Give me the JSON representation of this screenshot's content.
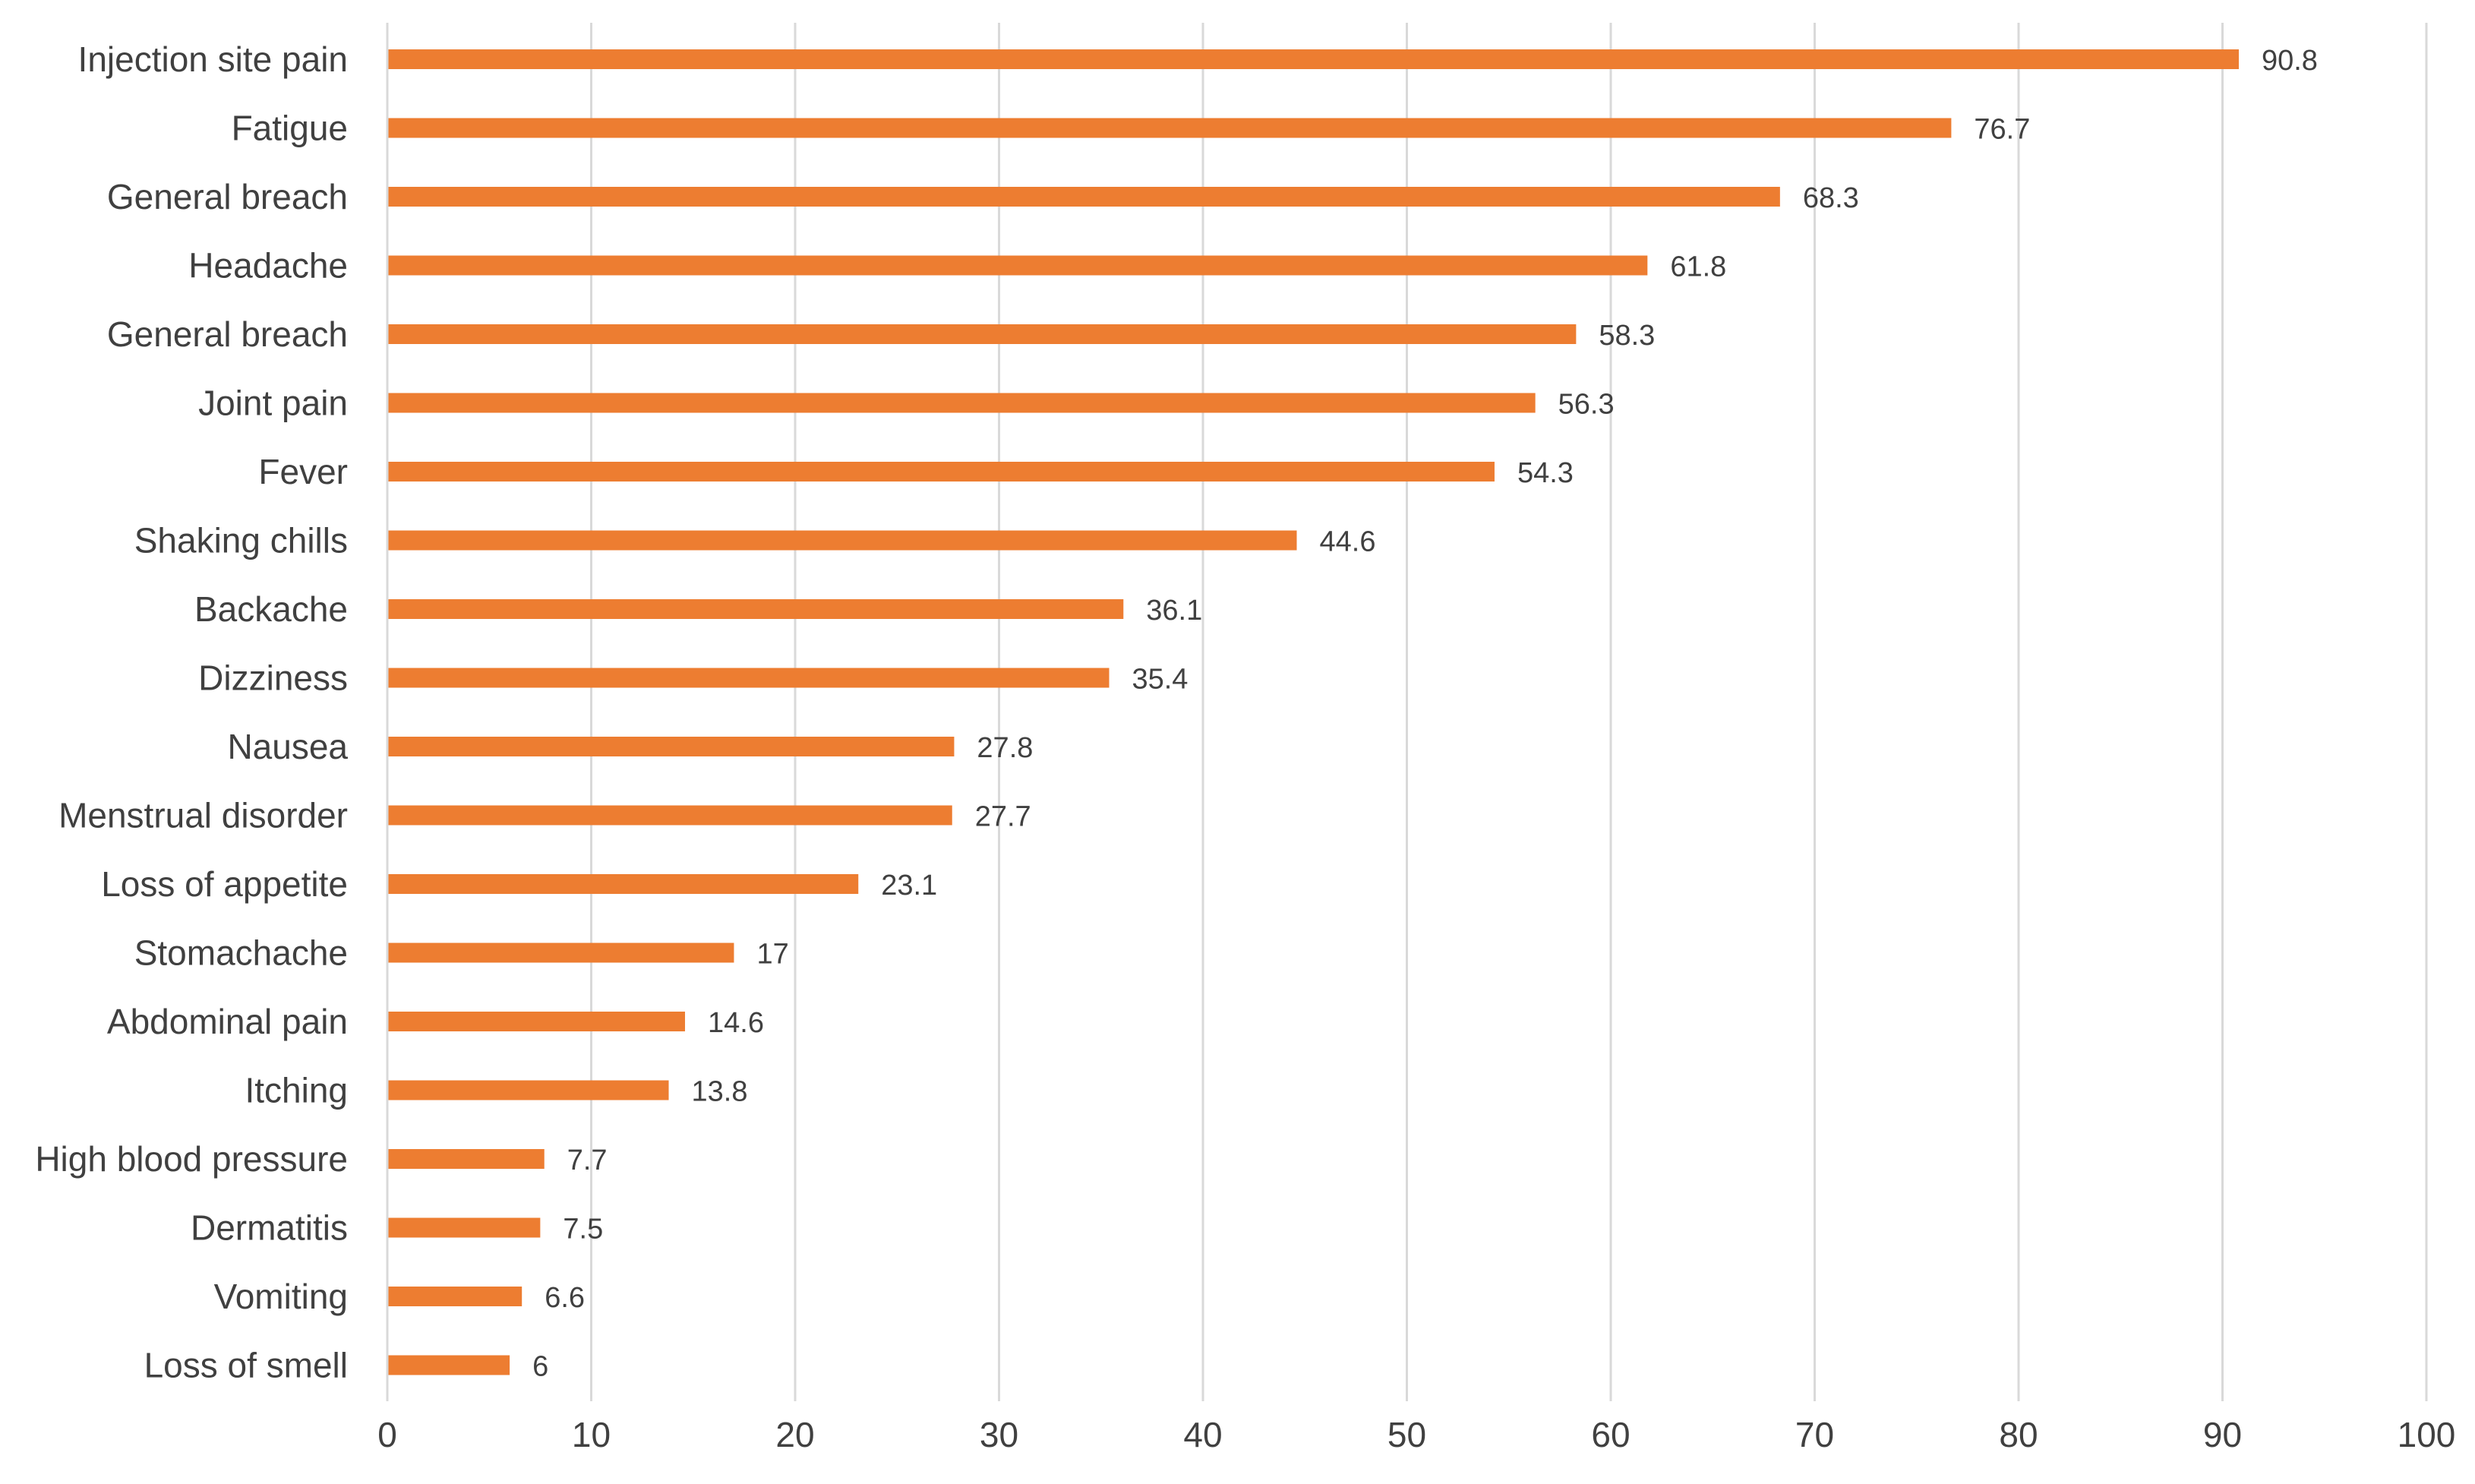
{
  "chart_data": {
    "type": "bar",
    "orientation": "horizontal",
    "title": "",
    "xlabel": "",
    "ylabel": "",
    "xlim": [
      0,
      100
    ],
    "x_ticks": [
      0,
      10,
      20,
      30,
      40,
      50,
      60,
      70,
      80,
      90,
      100
    ],
    "grid": "vertical",
    "legend": "none",
    "bar_color": "#ED7D31",
    "grid_color": "#D9D9D9",
    "text_color": "#404040",
    "categories": [
      "Injection site pain",
      "Fatigue",
      "General breach",
      "Headache",
      "General breach",
      "Joint pain",
      "Fever",
      "Shaking chills",
      "Backache",
      "Dizziness",
      "Nausea",
      "Menstrual disorder",
      "Loss of appetite",
      "Stomachache",
      "Abdominal pain",
      "Itching",
      "High blood pressure",
      "Dermatitis",
      "Vomiting",
      "Loss of smell"
    ],
    "values": [
      90.8,
      76.7,
      68.3,
      61.8,
      58.3,
      56.3,
      54.3,
      44.6,
      36.1,
      35.4,
      27.8,
      27.7,
      23.1,
      17,
      14.6,
      13.8,
      7.7,
      7.5,
      6.6,
      6
    ]
  }
}
